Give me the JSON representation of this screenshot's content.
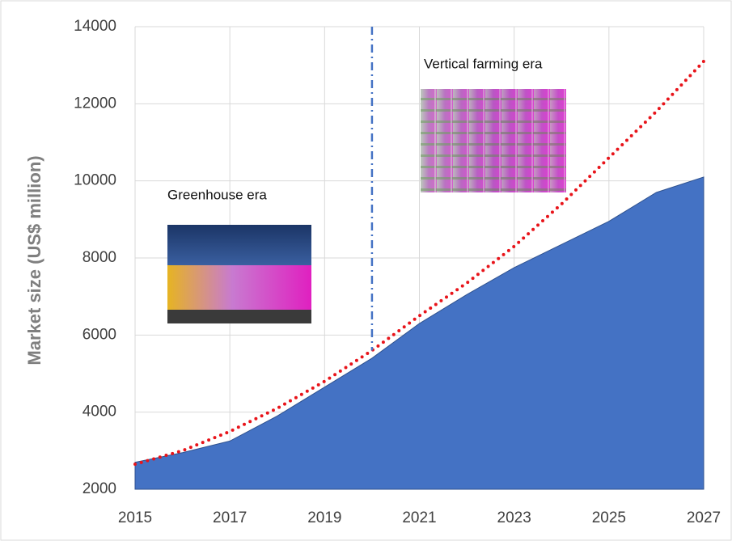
{
  "chart_data": {
    "type": "area",
    "y_label": "Market size (US$ million)",
    "x": [
      2015,
      2016,
      2017,
      2018,
      2019,
      2020,
      2021,
      2022,
      2023,
      2024,
      2025,
      2026,
      2027
    ],
    "series": [
      {
        "type": "area",
        "color": "#4472c4",
        "values": [
          2700,
          2950,
          3250,
          3900,
          4650,
          5400,
          6300,
          7050,
          7750,
          8350,
          8950,
          9700,
          10100
        ]
      },
      {
        "type": "line",
        "color": "#e8141a",
        "line_style": "dotted",
        "values": [
          2650,
          3000,
          3500,
          4100,
          4800,
          5600,
          6500,
          7350,
          8300,
          9400,
          10600,
          11800,
          13100
        ]
      }
    ],
    "vline": 2020,
    "vline_color": "#4472c4",
    "annotations": [
      "Greenhouse era",
      "Vertical farming era"
    ],
    "xlim": [
      2015,
      2027
    ],
    "xticks": [
      2015,
      2017,
      2019,
      2021,
      2023,
      2025,
      2027
    ],
    "ylim": [
      2000,
      14000
    ],
    "yticks": [
      2000,
      4000,
      6000,
      8000,
      10000,
      12000,
      14000
    ],
    "grid": true
  }
}
